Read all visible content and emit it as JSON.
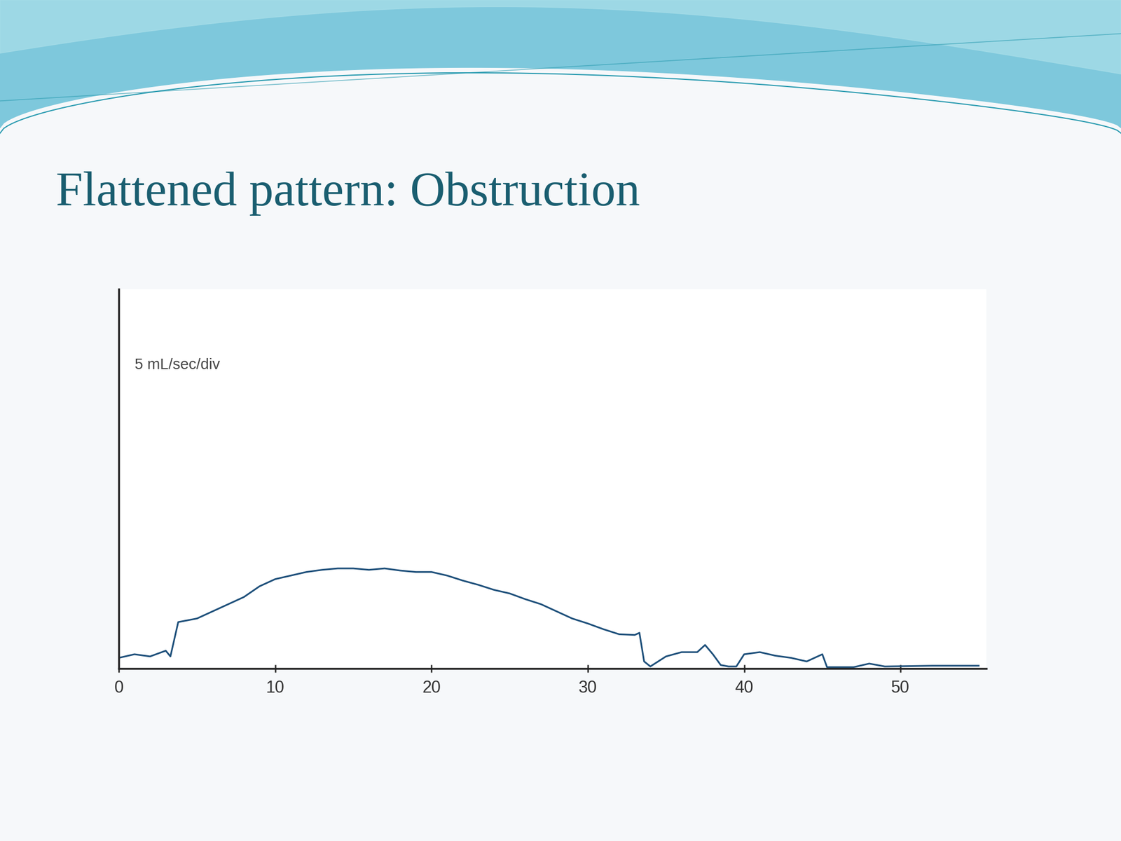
{
  "chart_data": {
    "type": "line",
    "title": "Flattened pattern: Obstruction",
    "ylabel": "5 mL/sec/div",
    "x": [
      0,
      1,
      2,
      3,
      3.3,
      3.8,
      5,
      6,
      7,
      8,
      9,
      10,
      11,
      12,
      13,
      14,
      15,
      16,
      17,
      18,
      19,
      20,
      21,
      22,
      23,
      24,
      25,
      26,
      27,
      28,
      29,
      30,
      31,
      32,
      33,
      33.3,
      33.6,
      34,
      35,
      36,
      37,
      37.5,
      38,
      38.5,
      39,
      39.5,
      40,
      41,
      42,
      43,
      44,
      45,
      45.3,
      47,
      48,
      49,
      52,
      55
    ],
    "values": [
      0.75,
      1.0,
      0.85,
      1.25,
      0.85,
      3.25,
      3.5,
      4.0,
      4.5,
      5.0,
      5.75,
      6.25,
      6.5,
      6.75,
      6.9,
      7.0,
      7.0,
      6.9,
      7.0,
      6.85,
      6.75,
      6.75,
      6.5,
      6.15,
      5.85,
      5.5,
      5.25,
      4.85,
      4.5,
      4.0,
      3.5,
      3.15,
      2.75,
      2.4,
      2.35,
      2.5,
      0.5,
      0.15,
      0.85,
      1.15,
      1.15,
      1.65,
      1.0,
      0.25,
      0.15,
      0.15,
      1.0,
      1.15,
      0.9,
      0.75,
      0.5,
      1.0,
      0.1,
      0.1,
      0.35,
      0.15,
      0.2,
      0.2
    ],
    "color": "#1d4f7a",
    "xlim": [
      0,
      55.5
    ],
    "xticks": [
      0,
      10,
      20,
      30,
      40,
      50
    ],
    "ylim": [
      0,
      26.5
    ],
    "yticks": [],
    "tick_labels": "x",
    "grid": false
  }
}
